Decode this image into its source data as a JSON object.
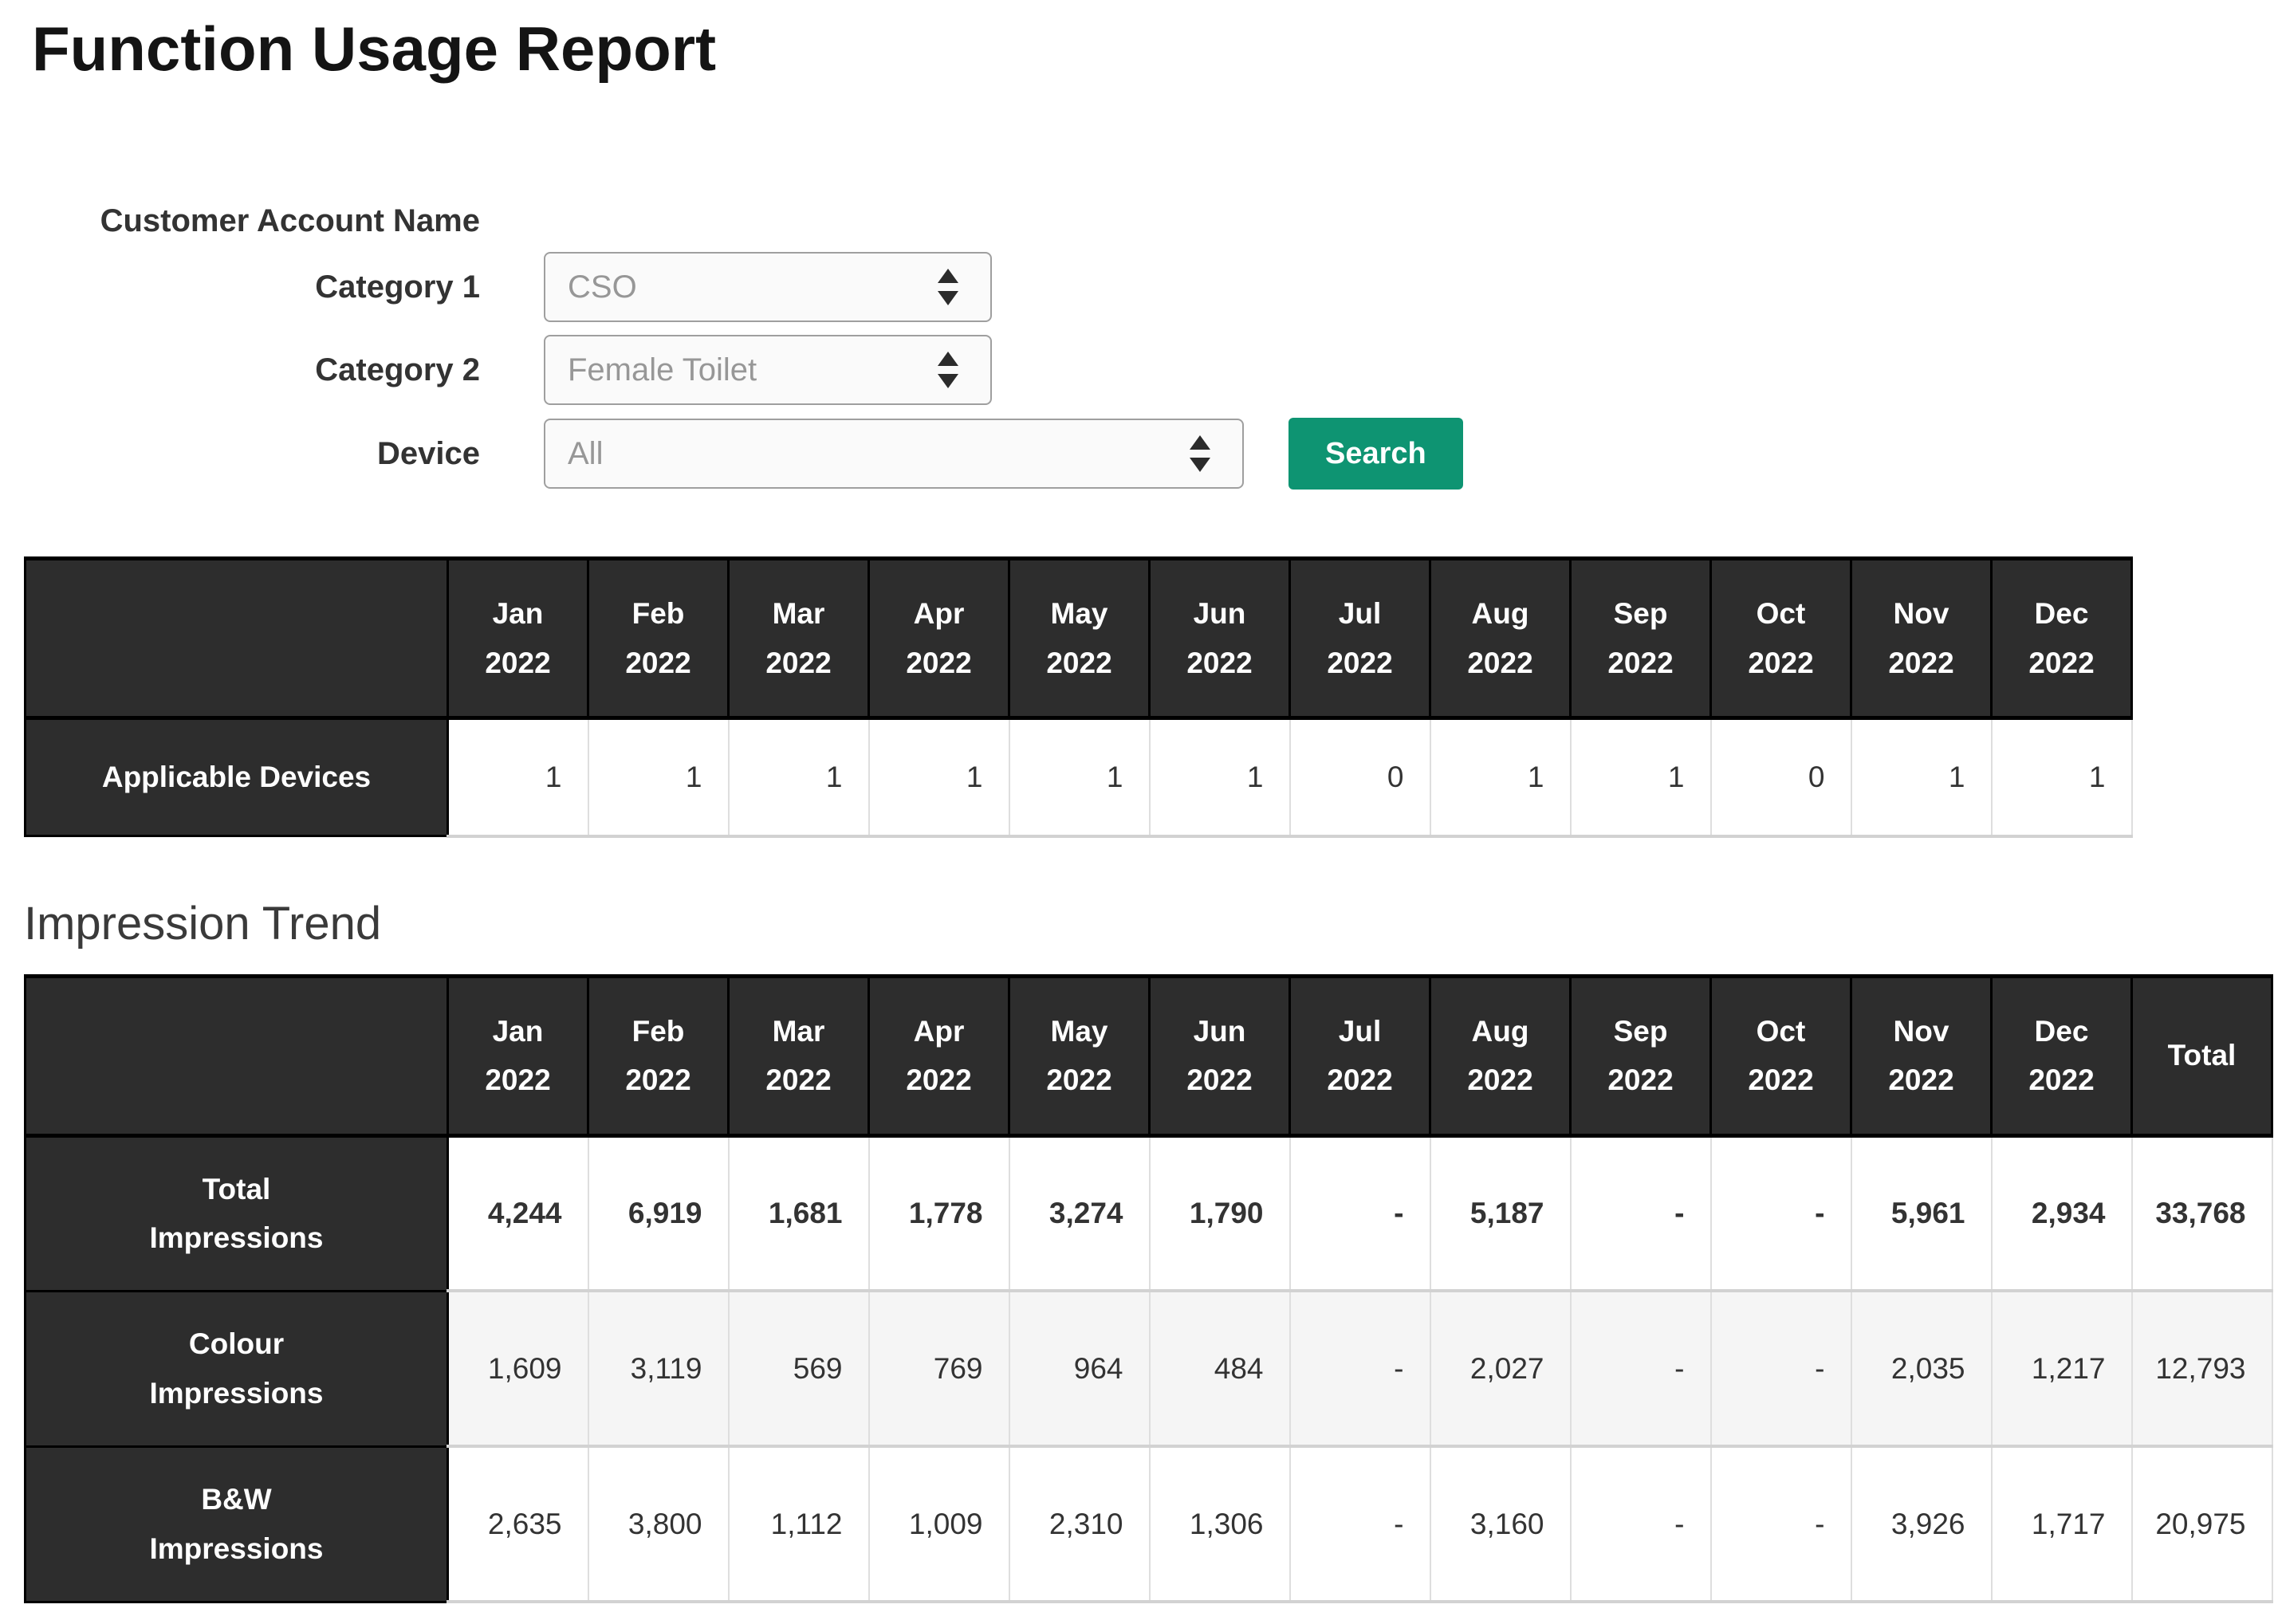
{
  "page": {
    "title": "Function Usage Report"
  },
  "form": {
    "customer_account_label": "Customer Account Name",
    "category1_label": "Category 1",
    "category1_value": "CSO",
    "category2_label": "Category 2",
    "category2_value": "Female Toilet",
    "device_label": "Device",
    "device_value": "All",
    "search_button": "Search"
  },
  "months": [
    "Jan\n2022",
    "Feb\n2022",
    "Mar\n2022",
    "Apr\n2022",
    "May\n2022",
    "Jun\n2022",
    "Jul\n2022",
    "Aug\n2022",
    "Sep\n2022",
    "Oct\n2022",
    "Nov\n2022",
    "Dec\n2022"
  ],
  "applicable_devices": {
    "row_label": "Applicable Devices",
    "values": [
      "1",
      "1",
      "1",
      "1",
      "1",
      "1",
      "0",
      "1",
      "1",
      "0",
      "1",
      "1"
    ]
  },
  "impression_trend": {
    "heading": "Impression Trend",
    "total_header": "Total",
    "rows": [
      {
        "label": "Total\nImpressions",
        "values": [
          "4,244",
          "6,919",
          "1,681",
          "1,778",
          "3,274",
          "1,790",
          "-",
          "5,187",
          "-",
          "-",
          "5,961",
          "2,934"
        ],
        "total": "33,768"
      },
      {
        "label": "Colour\nImpressions",
        "values": [
          "1,609",
          "3,119",
          "569",
          "769",
          "964",
          "484",
          "-",
          "2,027",
          "-",
          "-",
          "2,035",
          "1,217"
        ],
        "total": "12,793"
      },
      {
        "label": "B&W\nImpressions",
        "values": [
          "2,635",
          "3,800",
          "1,112",
          "1,009",
          "2,310",
          "1,306",
          "-",
          "3,160",
          "-",
          "-",
          "3,926",
          "1,717"
        ],
        "total": "20,975"
      }
    ]
  },
  "colors": {
    "header_bg": "#2d2d2d",
    "accent_green": "#0e9472"
  }
}
